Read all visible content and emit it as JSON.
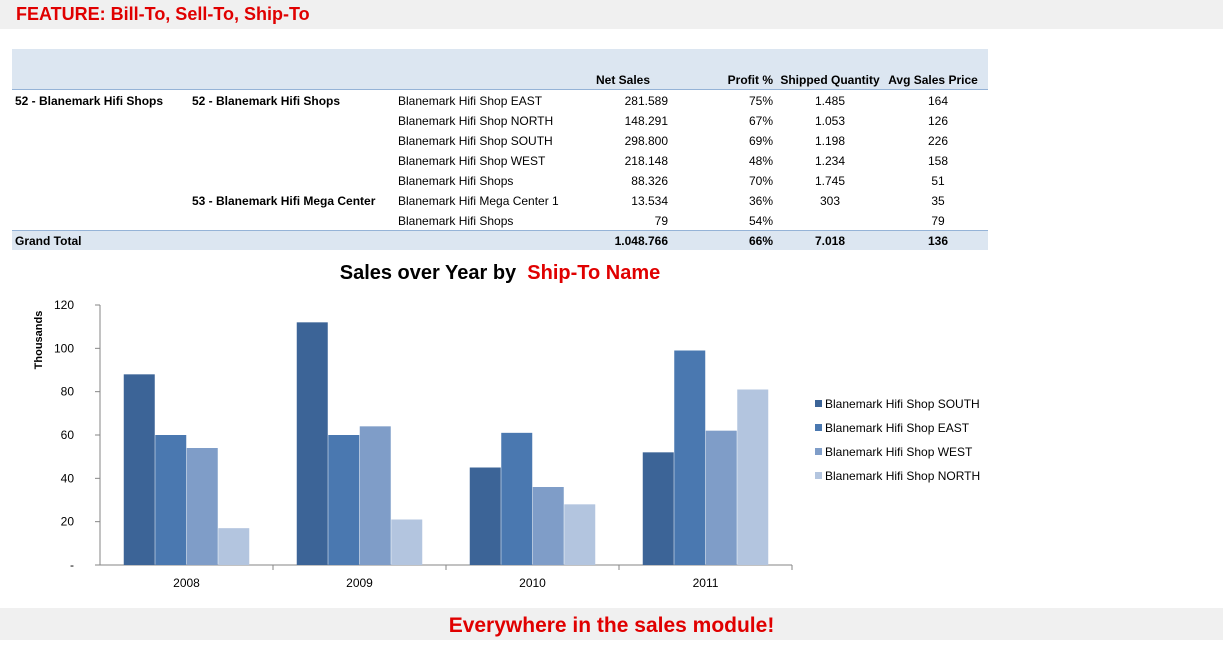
{
  "feature_heading": "FEATURE: Bill-To, Sell-To, Ship-To",
  "table": {
    "columns": [
      "Net Sales",
      "Profit %",
      "Shipped Quantity",
      "Avg Sales Price"
    ],
    "rows": [
      {
        "l1": "52 - Blanemark Hifi Shops",
        "l2": "52 - Blanemark Hifi Shops",
        "name": "Blanemark Hifi Shop EAST",
        "net": "281.589",
        "profit": "75%",
        "qty": "1.485",
        "avg": "164"
      },
      {
        "l1": "",
        "l2": "",
        "name": "Blanemark Hifi Shop NORTH",
        "net": "148.291",
        "profit": "67%",
        "qty": "1.053",
        "avg": "126"
      },
      {
        "l1": "",
        "l2": "",
        "name": "Blanemark Hifi Shop SOUTH",
        "net": "298.800",
        "profit": "69%",
        "qty": "1.198",
        "avg": "226"
      },
      {
        "l1": "",
        "l2": "",
        "name": "Blanemark Hifi Shop WEST",
        "net": "218.148",
        "profit": "48%",
        "qty": "1.234",
        "avg": "158"
      },
      {
        "l1": "",
        "l2": "",
        "name": "Blanemark Hifi Shops",
        "net": "88.326",
        "profit": "70%",
        "qty": "1.745",
        "avg": "51"
      },
      {
        "l1": "",
        "l2": "53 - Blanemark Hifi Mega Center",
        "name": "Blanemark Hifi Mega Center 1",
        "net": "13.534",
        "profit": "36%",
        "qty": "303",
        "avg": "35"
      },
      {
        "l1": "",
        "l2": "",
        "name": "Blanemark Hifi Shops",
        "net": "79",
        "profit": "54%",
        "qty": "",
        "avg": "79"
      }
    ],
    "total": {
      "label": "Grand Total",
      "net": "1.048.766",
      "profit": "66%",
      "qty": "7.018",
      "avg": "136"
    }
  },
  "chart_title": {
    "main": "Sales over Year by",
    "accent": "Ship-To Name"
  },
  "chart_data": {
    "type": "bar",
    "title": "Sales over Year by Ship-To Name",
    "xlabel": "",
    "ylabel": "Thousands",
    "ylim": [
      0,
      120
    ],
    "yticks": [
      0,
      20,
      40,
      60,
      80,
      100,
      120
    ],
    "ytick_labels": [
      "-",
      "20",
      "40",
      "60",
      "80",
      "100",
      "120"
    ],
    "categories": [
      "2008",
      "2009",
      "2010",
      "2011"
    ],
    "legend_position": "right",
    "grid": false,
    "series": [
      {
        "name": "Blanemark Hifi Shop SOUTH",
        "color": "#3c6497",
        "values": [
          88,
          112,
          45,
          52
        ]
      },
      {
        "name": "Blanemark Hifi Shop EAST",
        "color": "#4a78b0",
        "values": [
          60,
          60,
          61,
          99
        ]
      },
      {
        "name": "Blanemark Hifi Shop WEST",
        "color": "#7f9dc8",
        "values": [
          54,
          64,
          36,
          62
        ]
      },
      {
        "name": "Blanemark Hifi Shop NORTH",
        "color": "#b3c5df",
        "values": [
          17,
          21,
          28,
          81
        ]
      }
    ]
  },
  "footer_text": "Everywhere in the sales module!"
}
